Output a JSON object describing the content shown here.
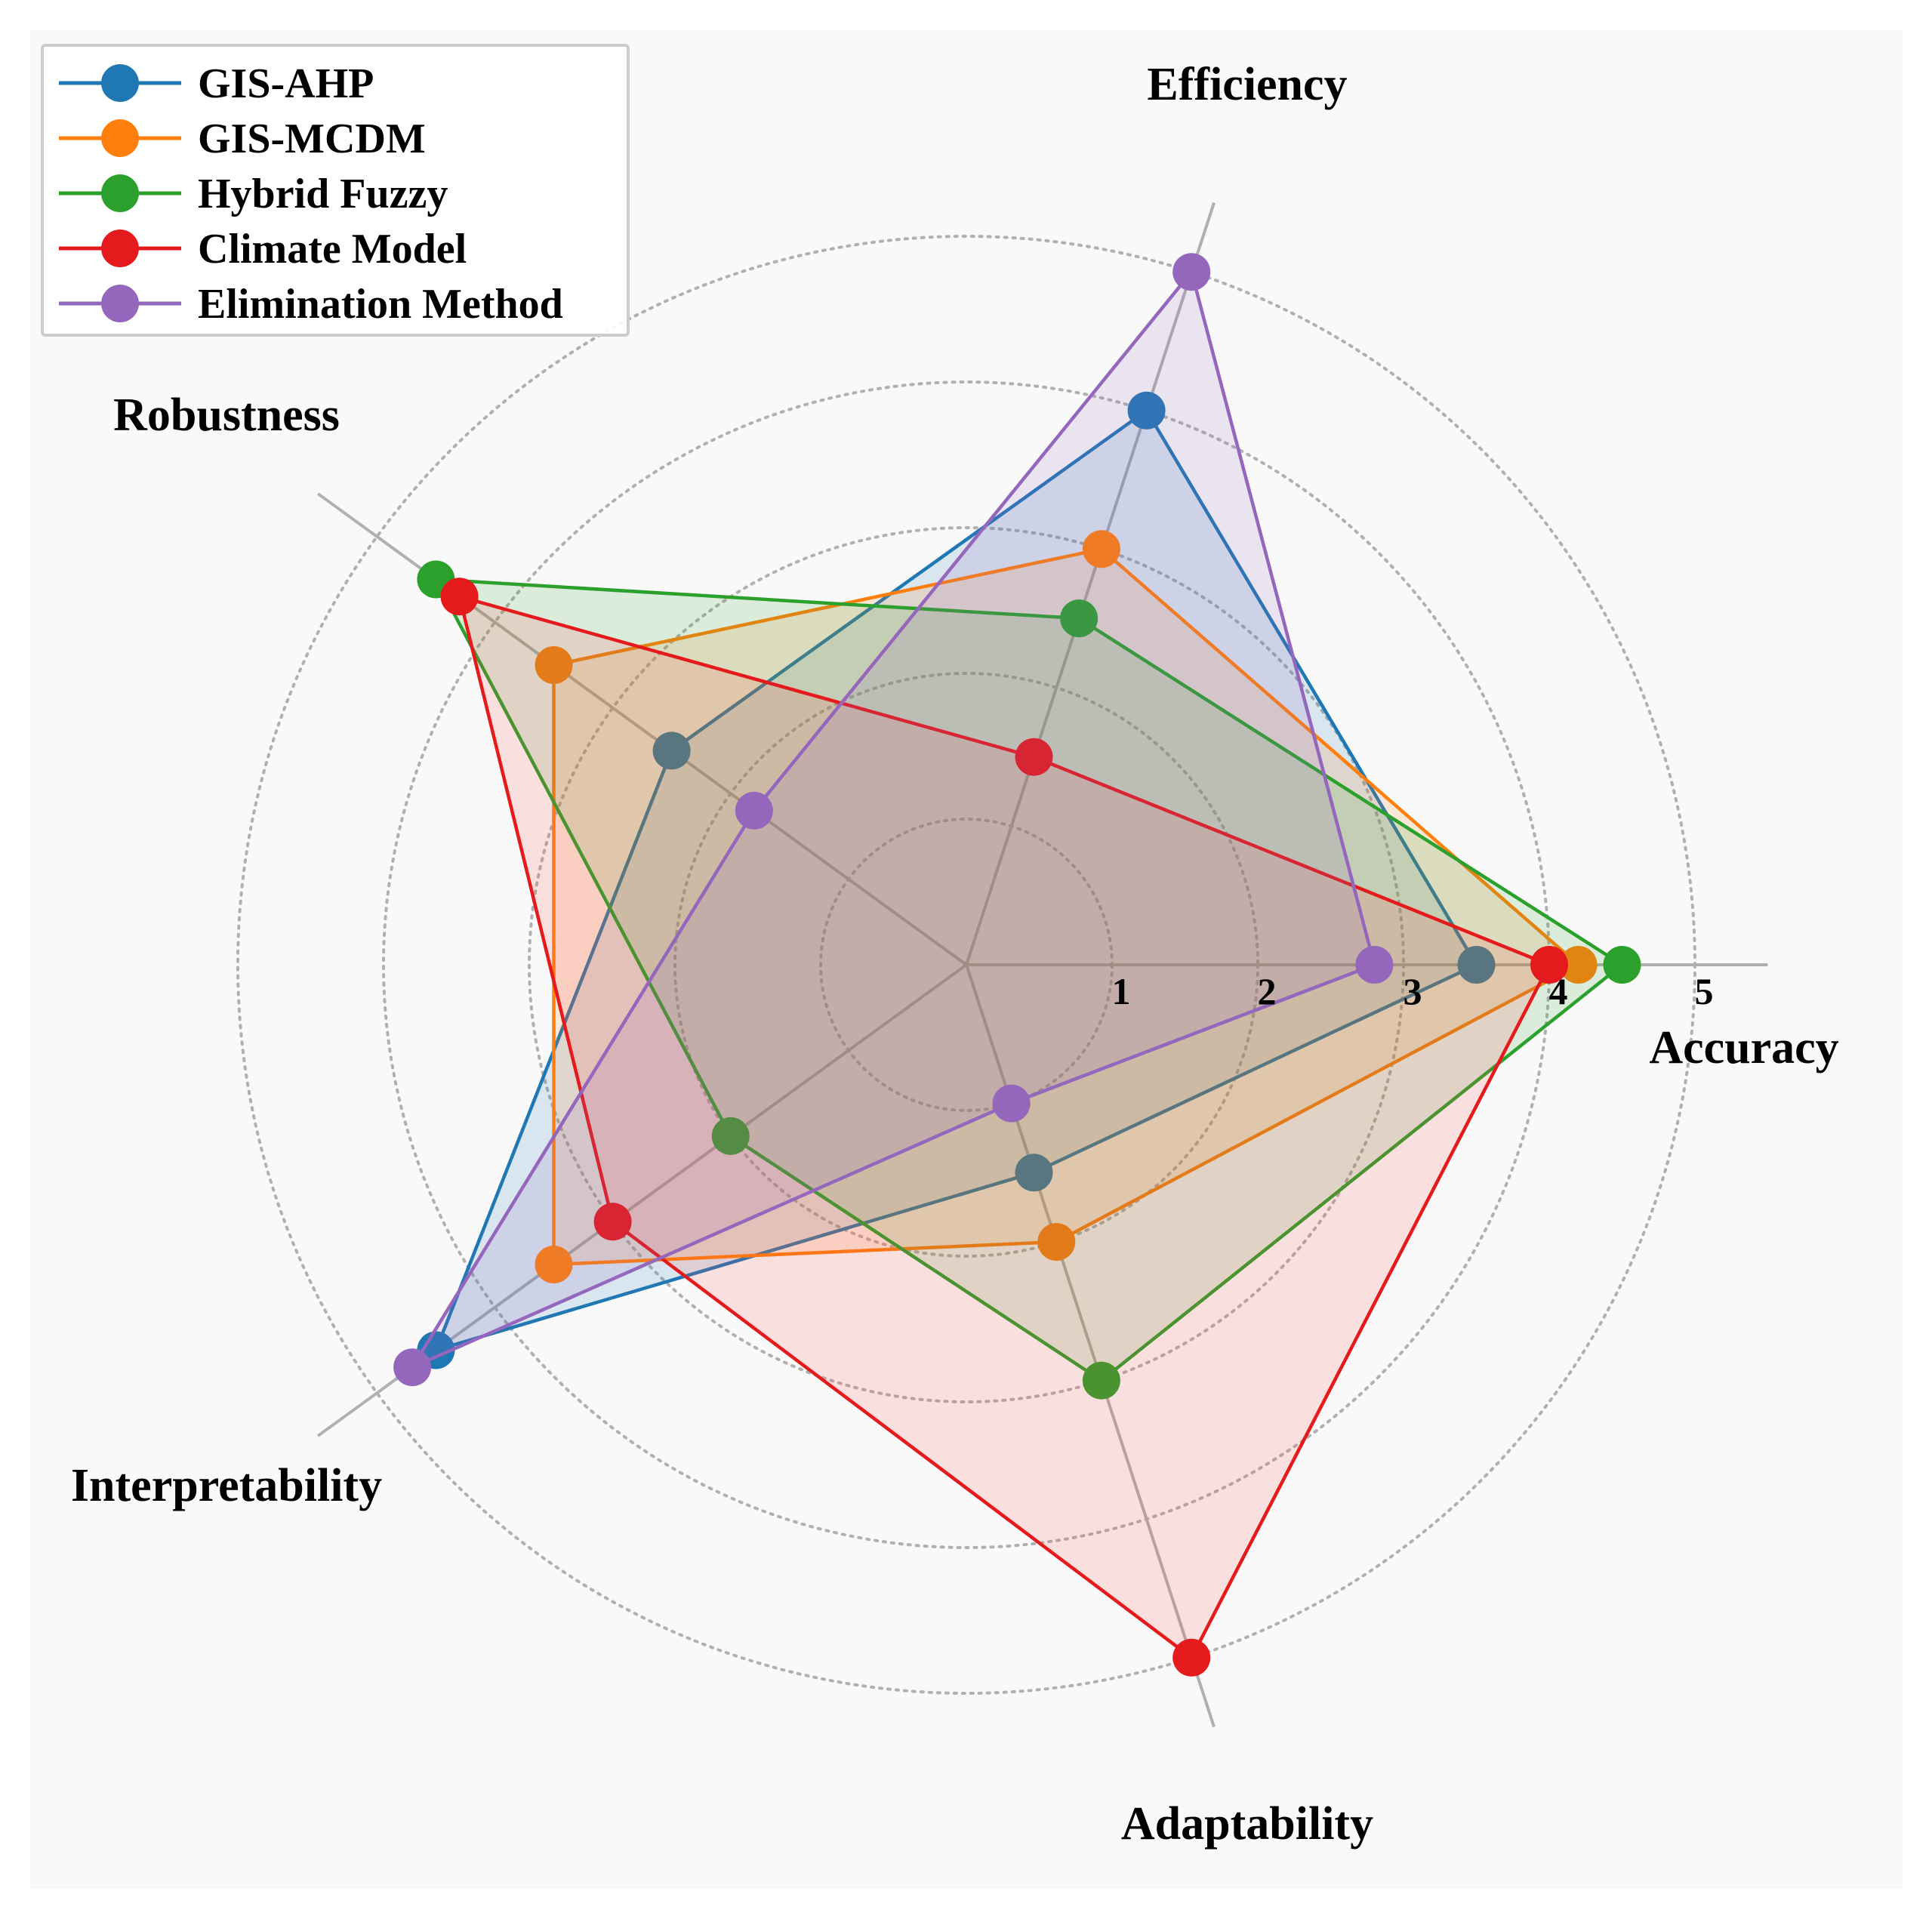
{
  "chart_data": {
    "type": "radar",
    "axes": [
      "Accuracy",
      "Efficiency",
      "Robustness",
      "Interpretability",
      "Adaptability"
    ],
    "ticks": [
      1,
      2,
      3,
      4,
      5
    ],
    "rlim": [
      0,
      5.5
    ],
    "grid": true,
    "legend_position": "top-left",
    "series": [
      {
        "name": "GIS-AHP",
        "values": [
          3.5,
          4.0,
          2.5,
          4.5,
          1.5
        ],
        "color": "#1f77b4",
        "fill": "#1f77b4"
      },
      {
        "name": "GIS-MCDM",
        "values": [
          4.2,
          3.0,
          3.5,
          3.5,
          2.0
        ],
        "color": "#ff7f0e",
        "fill": "#ff7f0e"
      },
      {
        "name": "Hybrid Fuzzy",
        "values": [
          4.5,
          2.5,
          4.5,
          2.0,
          3.0
        ],
        "color": "#2ca02c",
        "fill": "#2ca02c"
      },
      {
        "name": "Climate Model",
        "values": [
          4.0,
          1.5,
          4.3,
          3.0,
          5.0
        ],
        "color": "#e41a1c",
        "fill": "#ff4d4d"
      },
      {
        "name": "Elimination Method",
        "values": [
          2.8,
          5.0,
          1.8,
          4.7,
          1.0
        ],
        "color": "#9467bd",
        "fill": "#9467bd"
      }
    ]
  }
}
